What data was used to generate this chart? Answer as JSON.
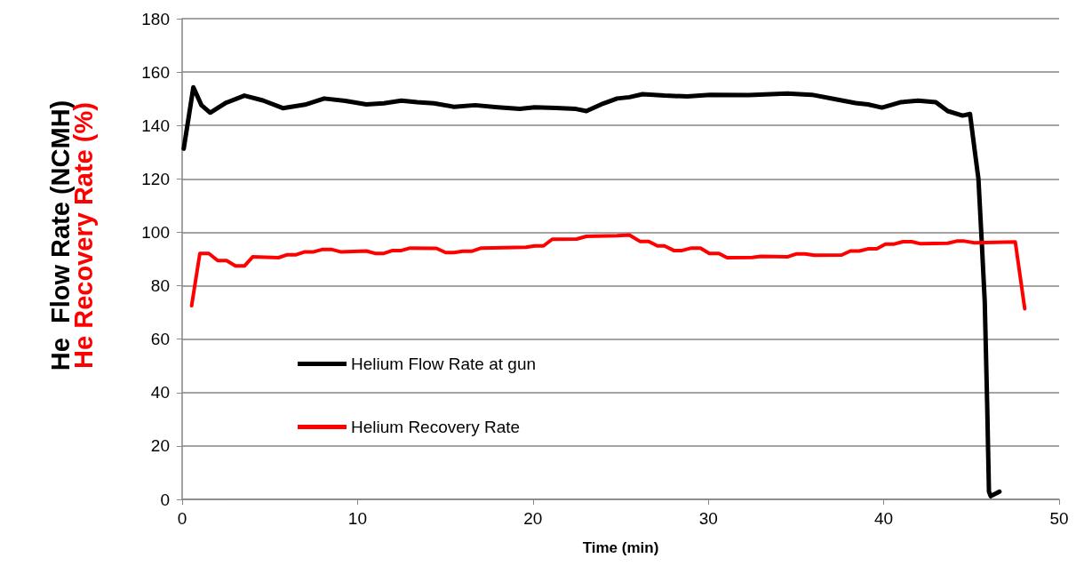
{
  "chart_data": {
    "type": "line",
    "xlabel": "Time (min)",
    "ylabel": "He  Flow Rate (NCMH)",
    "y2label": "He Recovery Rate (%)",
    "xlim": [
      0,
      50
    ],
    "xticks": [
      0,
      10,
      20,
      30,
      40,
      50
    ],
    "ylim": [
      0,
      180
    ],
    "yticks": [
      0,
      20,
      40,
      60,
      80,
      100,
      120,
      140,
      160,
      180
    ],
    "grid": "y",
    "legend": "bottom left",
    "marker": "none",
    "line_style": "solid",
    "series": [
      {
        "name": "Helium Flow Rate at gun",
        "color": "#000000",
        "x": [
          0.09,
          0.64,
          1.1,
          1.6,
          2.5,
          3.55,
          4.6,
          5.74,
          7,
          8.1,
          9.3,
          10.5,
          11.5,
          12.5,
          13.4,
          14.35,
          15.5,
          16.7,
          18,
          19.25,
          20.1,
          21.3,
          22.45,
          23.05,
          24,
          24.8,
          25.5,
          26.25,
          27.5,
          28.8,
          30.1,
          32.3,
          34.5,
          35.9,
          37.2,
          38.4,
          39.1,
          39.9,
          40.95,
          41.96,
          42.97,
          43.65,
          44.5,
          44.92,
          45.2,
          45.4,
          45.6,
          45.76,
          45.9,
          46.0,
          46.1,
          46.6
        ],
        "values": [
          131.3,
          154.3,
          147.6,
          144.8,
          148.5,
          151.2,
          149.4,
          146.5,
          147.8,
          150.1,
          149.2,
          147.9,
          148.3,
          149.3,
          148.7,
          148.3,
          147,
          147.6,
          146.8,
          146.2,
          146.8,
          146.6,
          146.2,
          145.4,
          148.2,
          150.1,
          150.6,
          151.7,
          151.2,
          150.9,
          151.5,
          151.4,
          152,
          151.5,
          149.9,
          148.4,
          147.9,
          146.7,
          148.7,
          149.3,
          148.7,
          145.4,
          143.7,
          144.3,
          130,
          120,
          95,
          73.9,
          35,
          2.9,
          1.2,
          2.9
        ]
      },
      {
        "name": "Helium Recovery Rate",
        "color": "#ff0000",
        "x": [
          0.54,
          1.01,
          1.52,
          2.03,
          2.53,
          3.04,
          3.55,
          4.02,
          5.49,
          6.0,
          6.5,
          7.0,
          7.5,
          8.02,
          8.5,
          9.03,
          10.5,
          11.0,
          11.5,
          12.0,
          12.5,
          13.0,
          14.5,
          15.03,
          15.5,
          16.0,
          16.5,
          17.05,
          19.6,
          20.1,
          20.6,
          21.1,
          22.5,
          23.05,
          24.8,
          25.5,
          26.1,
          26.6,
          27.1,
          27.5,
          28.03,
          28.5,
          29.04,
          29.55,
          30.06,
          30.6,
          31.07,
          32.5,
          33.0,
          34.5,
          35.0,
          35.5,
          36.05,
          37.6,
          38.1,
          38.6,
          39.1,
          39.6,
          40.1,
          40.6,
          41.1,
          41.6,
          42.1,
          43.65,
          44.16,
          44.6,
          45.17,
          47.5,
          48.04
        ],
        "values": [
          72.5,
          92.1,
          92.1,
          89.4,
          89.4,
          87.4,
          87.4,
          90.8,
          90.5,
          91.6,
          91.6,
          92.7,
          92.7,
          93.6,
          93.6,
          92.7,
          93.0,
          92.1,
          92.1,
          93.2,
          93.2,
          94.1,
          94.0,
          92.4,
          92.4,
          92.9,
          92.9,
          94.1,
          94.4,
          94.9,
          94.9,
          97.4,
          97.5,
          98.5,
          98.7,
          99.0,
          96.6,
          96.6,
          94.9,
          94.9,
          93.2,
          93.2,
          94.1,
          94.1,
          92.1,
          92.1,
          90.5,
          90.6,
          91.0,
          90.8,
          91.9,
          91.9,
          91.4,
          91.5,
          93.0,
          93.0,
          93.8,
          93.8,
          95.6,
          95.6,
          96.5,
          96.5,
          95.7,
          95.9,
          96.7,
          96.7,
          96.1,
          96.4,
          71.4
        ]
      }
    ]
  }
}
